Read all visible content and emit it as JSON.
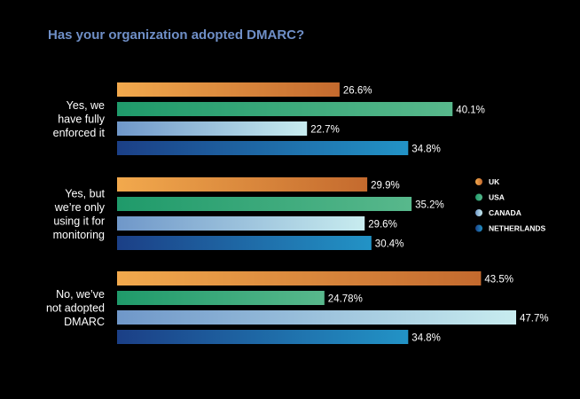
{
  "chart_data": {
    "type": "bar",
    "orientation": "horizontal",
    "title": "Has your organization adopted DMARC?",
    "categories": [
      [
        "Yes, we",
        "have fully",
        "enforced it"
      ],
      [
        "Yes, but",
        "we’re only",
        "using it for",
        "monitoring"
      ],
      [
        "No, we’ve",
        "not adopted",
        "DMARC"
      ]
    ],
    "series": [
      {
        "name": "UK",
        "values": [
          26.6,
          29.9,
          43.5
        ],
        "labels": [
          "26.6%",
          "29.9%",
          "43.5%"
        ],
        "color_start": "#f2a94d",
        "color_end": "#c46a2e"
      },
      {
        "name": "USA",
        "values": [
          40.1,
          35.2,
          24.78
        ],
        "labels": [
          "40.1%",
          "35.2%",
          "24.78%"
        ],
        "color_start": "#1f9a6a",
        "color_end": "#58b88c"
      },
      {
        "name": "CANADA",
        "values": [
          22.7,
          29.6,
          47.7
        ],
        "labels": [
          "22.7%",
          "29.6%",
          "47.7%"
        ],
        "color_start": "#6f97c9",
        "color_end": "#c8ecef"
      },
      {
        "name": "NETHERLANDS",
        "values": [
          34.8,
          30.4,
          34.8
        ],
        "labels": [
          "34.8%",
          "30.4%",
          "34.8%"
        ],
        "color_start": "#1b3f86",
        "color_end": "#2293c6"
      }
    ],
    "legend_position": "right",
    "grid": false,
    "xlim": [
      0,
      47.7
    ]
  }
}
